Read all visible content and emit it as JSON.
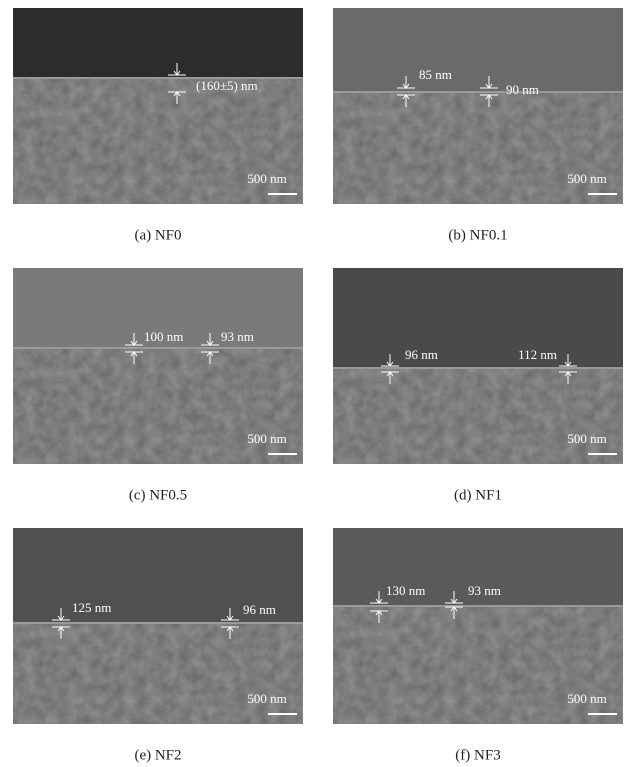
{
  "panels": [
    {
      "caption": "(a) NF0",
      "thickness": [
        "(160±5) nm"
      ],
      "scale_bar": "500 nm"
    },
    {
      "caption": "(b) NF0.1",
      "thickness": [
        "85 nm",
        "90 nm"
      ],
      "scale_bar": "500 nm"
    },
    {
      "caption": "(c) NF0.5",
      "thickness": [
        "100 nm",
        "93 nm"
      ],
      "scale_bar": "500 nm"
    },
    {
      "caption": "(d) NF1",
      "thickness": [
        "96 nm",
        "112 nm"
      ],
      "scale_bar": "500 nm"
    },
    {
      "caption": "(e) NF2",
      "thickness": [
        "125 nm",
        "96 nm"
      ],
      "scale_bar": "500 nm"
    },
    {
      "caption": "(f) NF3",
      "thickness": [
        "130 nm",
        "93 nm"
      ],
      "scale_bar": "500 nm"
    }
  ]
}
